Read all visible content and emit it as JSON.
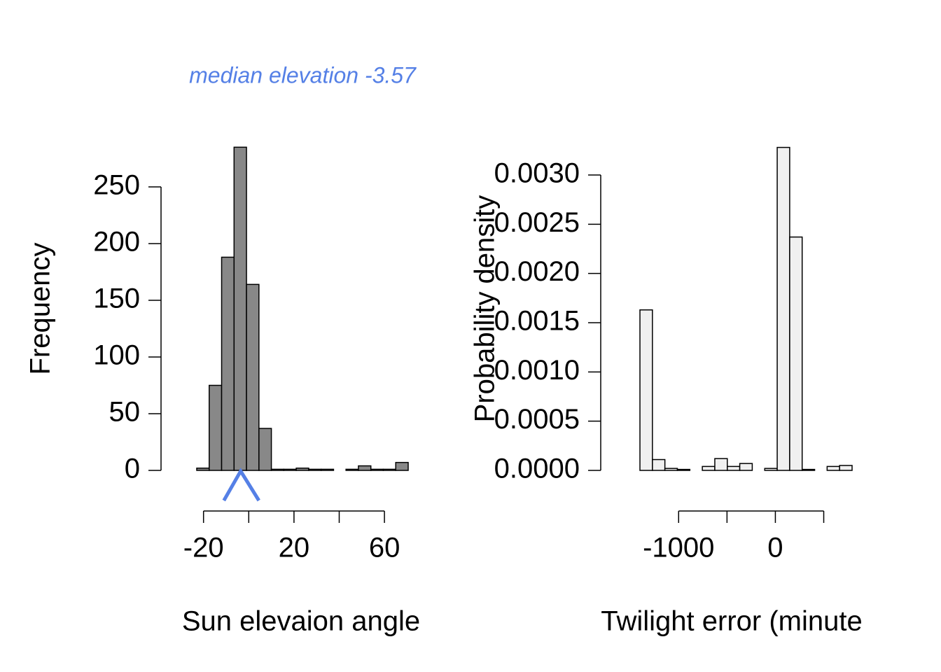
{
  "chart_data": [
    {
      "type": "histogram",
      "annotation": "median elevation -3.57",
      "median": -3.57,
      "median_color": "#5580e6",
      "xlabel": "Sun elevaion angle",
      "ylabel": "Frequency",
      "color": "#888888",
      "bins": [
        -23,
        -17.5,
        -12,
        -6.5,
        -1,
        4.5,
        10,
        15.5,
        21,
        26.5,
        32,
        37.5,
        43,
        48.5,
        54,
        59.5,
        65,
        70.5
      ],
      "values": [
        2,
        75,
        188,
        285,
        164,
        37,
        1,
        1,
        2,
        1,
        1,
        0,
        1,
        4,
        1,
        1,
        7
      ],
      "xlim": [
        -23,
        70.5
      ],
      "xticks": [
        -20,
        {
          "value": 0,
          "label": null
        },
        20,
        {
          "value": 40,
          "label": null
        },
        60
      ],
      "ylim": [
        0,
        285
      ],
      "yticks": [
        0,
        50,
        100,
        150,
        200,
        250
      ]
    },
    {
      "type": "histogram",
      "xlabel": "Twilight error (minute",
      "ylabel": "Probability density",
      "color": "#f0f0f0",
      "bins": [
        -1400,
        -1271,
        -1142,
        -1013,
        -884,
        -755,
        -626,
        -497,
        -368,
        -239,
        -110,
        19,
        148,
        277,
        406,
        535,
        664,
        793
      ],
      "values": [
        0.00163,
        0.00011,
        2e-05,
        1e-05,
        0,
        4e-05,
        0.00012,
        4e-05,
        7e-05,
        0,
        2e-05,
        0.00328,
        0.00237,
        1e-05,
        0,
        4e-05,
        5e-05
      ],
      "xlim": [
        -1400,
        793
      ],
      "xticks": [
        -1000,
        {
          "value": -500,
          "label": null
        },
        0,
        {
          "value": 500,
          "label": null
        }
      ],
      "ylim": [
        0,
        0.00328
      ],
      "yticks": [
        {
          "value": 0,
          "label": "0.0000"
        },
        {
          "value": 0.0005,
          "label": "0.0005"
        },
        {
          "value": 0.001,
          "label": "0.0010"
        },
        {
          "value": 0.0015,
          "label": "0.0015"
        },
        {
          "value": 0.002,
          "label": "0.0020"
        },
        {
          "value": 0.0025,
          "label": "0.0025"
        },
        {
          "value": 0.003,
          "label": "0.0030"
        }
      ]
    }
  ]
}
